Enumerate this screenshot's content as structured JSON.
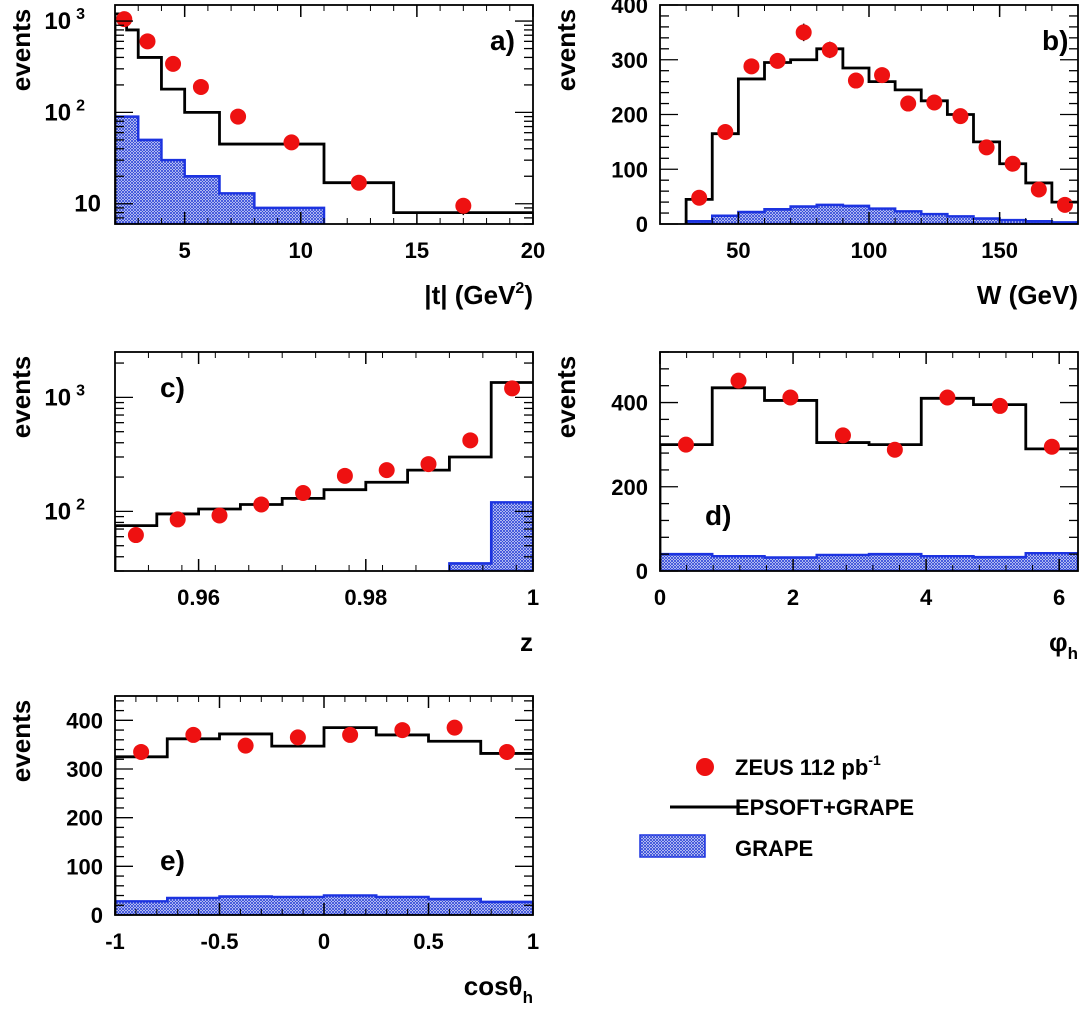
{
  "colors": {
    "data": "#ee1111",
    "mc": "#000000",
    "grape_fill": "#3a4fd6",
    "grape_edge": "#1c33e0"
  },
  "legend": {
    "data_label": "ZEUS 112 pb",
    "data_label_sup": "-1",
    "mc_label": "EPSOFT+GRAPE",
    "grape_label": "GRAPE"
  },
  "chart_data": [
    {
      "panel": "a)",
      "type": "bar",
      "xlabel": "|t| (GeV",
      "xlabel_sup": "2",
      "xlabel_tail": ")",
      "ylabel": "events",
      "xscale": "linear",
      "yscale": "log",
      "xlim": [
        2,
        20
      ],
      "ylim": [
        6,
        1500
      ],
      "xticks": [
        5,
        10,
        15,
        20
      ],
      "yticks": [
        {
          "v": 10,
          "label": "10",
          "sup": ""
        },
        {
          "v": 100,
          "label": "10",
          "sup": "2"
        },
        {
          "v": 1000,
          "label": "10",
          "sup": "3"
        }
      ],
      "mc_edges": [
        2,
        2.5,
        3,
        4,
        5,
        6.5,
        8,
        11,
        14,
        20
      ],
      "mc_values": [
        1200,
        800,
        400,
        180,
        100,
        45,
        45,
        17,
        8
      ],
      "grape_edges": [
        2,
        3,
        4,
        5,
        6.5,
        8,
        11
      ],
      "grape_values": [
        90,
        50,
        30,
        20,
        13,
        9
      ],
      "data": [
        {
          "x": 2.4,
          "y": 1050,
          "err": 90
        },
        {
          "x": 3.4,
          "y": 600,
          "err": 50
        },
        {
          "x": 4.5,
          "y": 340,
          "err": 30
        },
        {
          "x": 5.7,
          "y": 190,
          "err": 15
        },
        {
          "x": 7.3,
          "y": 90,
          "err": 9
        },
        {
          "x": 9.6,
          "y": 47,
          "err": 5
        },
        {
          "x": 12.5,
          "y": 17,
          "err": 3
        },
        {
          "x": 17,
          "y": 9.5,
          "err": 2
        }
      ]
    },
    {
      "panel": "b)",
      "type": "bar",
      "xlabel": "W (GeV)",
      "ylabel": "events",
      "xscale": "linear",
      "yscale": "linear",
      "xlim": [
        20,
        180
      ],
      "ylim": [
        0,
        400
      ],
      "xticks": [
        50,
        100,
        150
      ],
      "yticks": [
        0,
        100,
        200,
        300,
        400
      ],
      "mc_edges": [
        30,
        40,
        50,
        60,
        70,
        80,
        90,
        100,
        110,
        120,
        130,
        140,
        150,
        160,
        170,
        180
      ],
      "mc_values": [
        45,
        165,
        265,
        295,
        300,
        320,
        285,
        260,
        245,
        225,
        200,
        150,
        110,
        75,
        40
      ],
      "grape_edges": [
        30,
        40,
        50,
        60,
        70,
        80,
        90,
        100,
        110,
        120,
        130,
        140,
        150,
        160,
        170,
        180
      ],
      "grape_values": [
        5,
        15,
        22,
        27,
        32,
        35,
        33,
        28,
        23,
        18,
        14,
        10,
        7,
        5,
        3
      ],
      "data": [
        {
          "x": 35,
          "y": 48,
          "err": 7
        },
        {
          "x": 45,
          "y": 168,
          "err": 12
        },
        {
          "x": 55,
          "y": 288,
          "err": 14
        },
        {
          "x": 65,
          "y": 298,
          "err": 14
        },
        {
          "x": 75,
          "y": 350,
          "err": 16
        },
        {
          "x": 85,
          "y": 318,
          "err": 15
        },
        {
          "x": 95,
          "y": 262,
          "err": 14
        },
        {
          "x": 105,
          "y": 272,
          "err": 14
        },
        {
          "x": 115,
          "y": 220,
          "err": 13
        },
        {
          "x": 125,
          "y": 222,
          "err": 13
        },
        {
          "x": 135,
          "y": 197,
          "err": 12
        },
        {
          "x": 145,
          "y": 140,
          "err": 10
        },
        {
          "x": 155,
          "y": 110,
          "err": 9
        },
        {
          "x": 165,
          "y": 63,
          "err": 7
        },
        {
          "x": 175,
          "y": 35,
          "err": 5
        }
      ]
    },
    {
      "panel": "c)",
      "type": "bar",
      "xlabel": "z",
      "ylabel": "events",
      "xscale": "linear",
      "yscale": "log",
      "xlim": [
        0.95,
        1.0
      ],
      "ylim": [
        30,
        2500
      ],
      "xticks": [
        0.96,
        0.98,
        1
      ],
      "xticklabels": [
        "0.96",
        "0.98",
        "1"
      ],
      "yticks": [
        {
          "v": 100,
          "label": "10",
          "sup": "2"
        },
        {
          "v": 1000,
          "label": "10",
          "sup": "3"
        }
      ],
      "mc_edges": [
        0.95,
        0.955,
        0.96,
        0.965,
        0.97,
        0.975,
        0.98,
        0.985,
        0.99,
        0.995,
        1.0
      ],
      "mc_values": [
        75,
        95,
        105,
        115,
        130,
        155,
        180,
        230,
        300,
        1350
      ],
      "grape_edges": [
        0.99,
        0.995,
        1.0
      ],
      "grape_values": [
        35,
        120
      ],
      "data": [
        {
          "x": 0.9525,
          "y": 62,
          "err": 5
        },
        {
          "x": 0.9575,
          "y": 85,
          "err": 6
        },
        {
          "x": 0.9625,
          "y": 92,
          "err": 6
        },
        {
          "x": 0.9675,
          "y": 115,
          "err": 7
        },
        {
          "x": 0.9725,
          "y": 145,
          "err": 8
        },
        {
          "x": 0.9775,
          "y": 205,
          "err": 10
        },
        {
          "x": 0.9825,
          "y": 230,
          "err": 11
        },
        {
          "x": 0.9875,
          "y": 260,
          "err": 12
        },
        {
          "x": 0.9925,
          "y": 420,
          "err": 15
        },
        {
          "x": 0.9975,
          "y": 1200,
          "err": 40
        }
      ]
    },
    {
      "panel": "d)",
      "type": "bar",
      "xlabel": "φ",
      "xlabel_sub": "h",
      "ylabel": "events",
      "xscale": "linear",
      "yscale": "linear",
      "xlim": [
        0,
        6.283
      ],
      "ylim": [
        0,
        520
      ],
      "xticks": [
        0,
        2,
        4,
        6
      ],
      "yticks": [
        0,
        200,
        400
      ],
      "mc_edges": [
        0,
        0.785,
        1.571,
        2.356,
        3.142,
        3.927,
        4.712,
        5.498,
        6.283
      ],
      "mc_values": [
        300,
        435,
        405,
        305,
        300,
        410,
        395,
        290
      ],
      "grape_edges": [
        0,
        0.785,
        1.571,
        2.356,
        3.142,
        3.927,
        4.712,
        5.498,
        6.283
      ],
      "grape_values": [
        40,
        35,
        32,
        38,
        40,
        35,
        33,
        42
      ],
      "data": [
        {
          "x": 0.39,
          "y": 300,
          "err": 14
        },
        {
          "x": 1.18,
          "y": 452,
          "err": 17
        },
        {
          "x": 1.96,
          "y": 412,
          "err": 16
        },
        {
          "x": 2.75,
          "y": 322,
          "err": 14
        },
        {
          "x": 3.53,
          "y": 288,
          "err": 14
        },
        {
          "x": 4.32,
          "y": 412,
          "err": 16
        },
        {
          "x": 5.11,
          "y": 392,
          "err": 16
        },
        {
          "x": 5.89,
          "y": 295,
          "err": 14
        }
      ]
    },
    {
      "panel": "e)",
      "type": "bar",
      "xlabel": "cosθ",
      "xlabel_sub": "h",
      "ylabel": "events",
      "xscale": "linear",
      "yscale": "linear",
      "xlim": [
        -1,
        1
      ],
      "ylim": [
        0,
        450
      ],
      "xticks": [
        -1,
        -0.5,
        0,
        0.5,
        1
      ],
      "yticks": [
        0,
        100,
        200,
        300,
        400
      ],
      "mc_edges": [
        -1,
        -0.75,
        -0.5,
        -0.25,
        0,
        0.25,
        0.5,
        0.75,
        1
      ],
      "mc_values": [
        325,
        362,
        372,
        347,
        385,
        370,
        357,
        332
      ],
      "grape_edges": [
        -1,
        -0.75,
        -0.5,
        -0.25,
        0,
        0.25,
        0.5,
        0.75,
        1
      ],
      "grape_values": [
        28,
        35,
        38,
        37,
        40,
        37,
        33,
        27
      ],
      "data": [
        {
          "x": -0.875,
          "y": 335,
          "err": 15
        },
        {
          "x": -0.625,
          "y": 370,
          "err": 15
        },
        {
          "x": -0.375,
          "y": 348,
          "err": 15
        },
        {
          "x": -0.125,
          "y": 365,
          "err": 15
        },
        {
          "x": 0.125,
          "y": 370,
          "err": 15
        },
        {
          "x": 0.375,
          "y": 380,
          "err": 15
        },
        {
          "x": 0.625,
          "y": 385,
          "err": 15
        },
        {
          "x": 0.875,
          "y": 335,
          "err": 15
        }
      ]
    }
  ]
}
